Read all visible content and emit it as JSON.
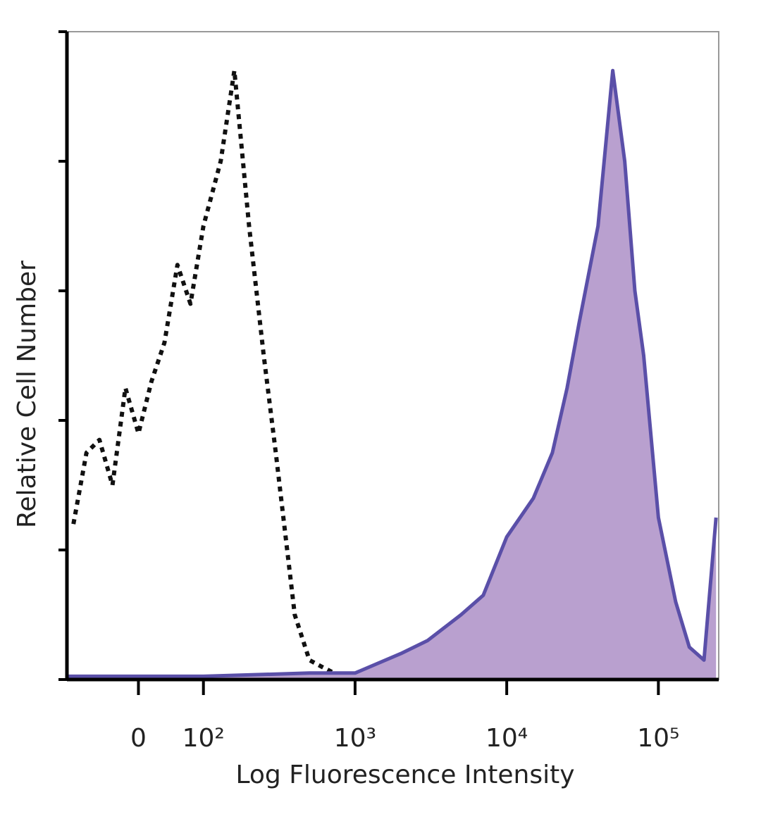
{
  "chart_data": {
    "type": "histogram-overlay",
    "x_label": "Log Fluorescence Intensity",
    "y_label": "Relative Cell Number",
    "xscale": "biexponential",
    "xlim": [
      -110,
      250000
    ],
    "xticks": [
      0,
      {
        "value": 100,
        "label": "10²"
      },
      {
        "value": 1000,
        "label": "10³"
      },
      {
        "value": 10000,
        "label": "10⁴"
      },
      {
        "value": 100000,
        "label": "10⁵"
      }
    ],
    "ylim": [
      0,
      100
    ],
    "yticks": [
      0,
      20,
      40,
      60,
      80,
      100
    ],
    "series": [
      {
        "color": "#111111",
        "dashed": true,
        "x": [
          -100,
          -80,
          -60,
          -40,
          -20,
          0,
          20,
          40,
          60,
          80,
          100,
          130,
          160,
          200,
          250,
          300,
          400,
          500,
          600,
          800,
          1000
        ],
        "values": [
          24,
          35,
          37,
          30,
          45,
          38,
          46,
          52,
          64,
          58,
          70,
          80,
          94,
          70,
          50,
          35,
          10,
          3,
          2,
          0.5,
          0
        ]
      },
      {
        "color": "#5a4fa8",
        "fill": "#b9a0cf",
        "x": [
          -110,
          0,
          100,
          500,
          1000,
          2000,
          3000,
          5000,
          7000,
          10000,
          15000,
          20000,
          25000,
          30000,
          40000,
          50000,
          60000,
          70000,
          80000,
          100000,
          130000,
          160000,
          200000,
          240000
        ],
        "values": [
          0.5,
          0.5,
          0.5,
          1,
          1,
          4,
          6,
          10,
          13,
          22,
          28,
          35,
          45,
          55,
          70,
          94,
          80,
          60,
          50,
          25,
          12,
          5,
          3,
          25
        ]
      }
    ]
  }
}
